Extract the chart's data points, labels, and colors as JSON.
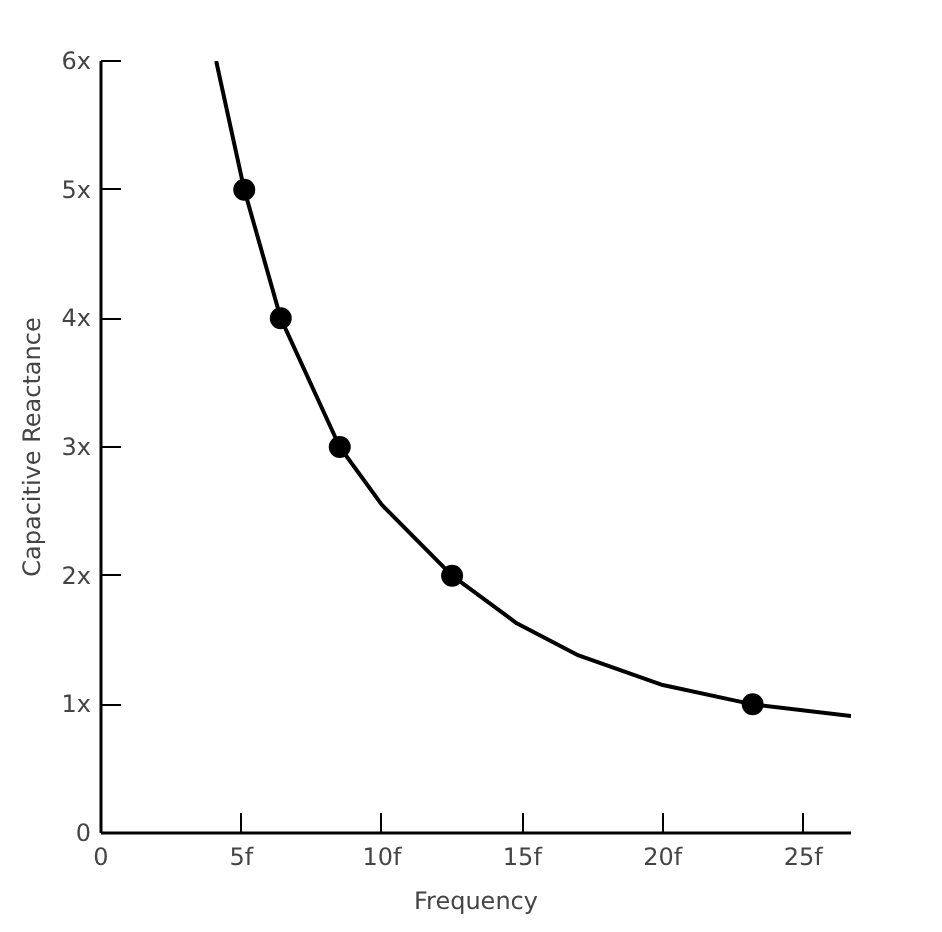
{
  "chart_data": {
    "type": "line",
    "xlabel": "Frequency",
    "ylabel": "Capacitive Reactance",
    "series": [
      {
        "color": "#000000",
        "x": [
          4.1,
          5.1,
          6.4,
          8.5,
          10,
          12.5,
          14.8,
          17,
          20,
          23.2,
          26.7
        ],
        "values": [
          6,
          5,
          4,
          3,
          2.55,
          2,
          1.63,
          1.38,
          1.15,
          1,
          0.91
        ]
      },
      {
        "type": "scatter",
        "color": "#000000",
        "marker": "circle",
        "x": [
          5.1,
          6.4,
          8.5,
          12.5,
          23.2
        ],
        "values": [
          5,
          4,
          3,
          2,
          1
        ]
      }
    ],
    "xlim": [
      0,
      26.7
    ],
    "ylim": [
      0,
      6
    ],
    "xticks": [
      0,
      {
        "value": 5,
        "label": "5f"
      },
      {
        "value": 10,
        "label": "10f"
      },
      {
        "value": 15,
        "label": "15f"
      },
      {
        "value": 20,
        "label": "20f"
      },
      {
        "value": 25,
        "label": "25f"
      }
    ],
    "yticks": [
      0,
      {
        "value": 1,
        "label": "1x"
      },
      {
        "value": 2,
        "label": "2x"
      },
      {
        "value": 3,
        "label": "3x"
      },
      {
        "value": 4,
        "label": "4x"
      },
      {
        "value": 5,
        "label": "5x"
      },
      {
        "value": 6,
        "label": "6x"
      }
    ],
    "grid": false
  }
}
